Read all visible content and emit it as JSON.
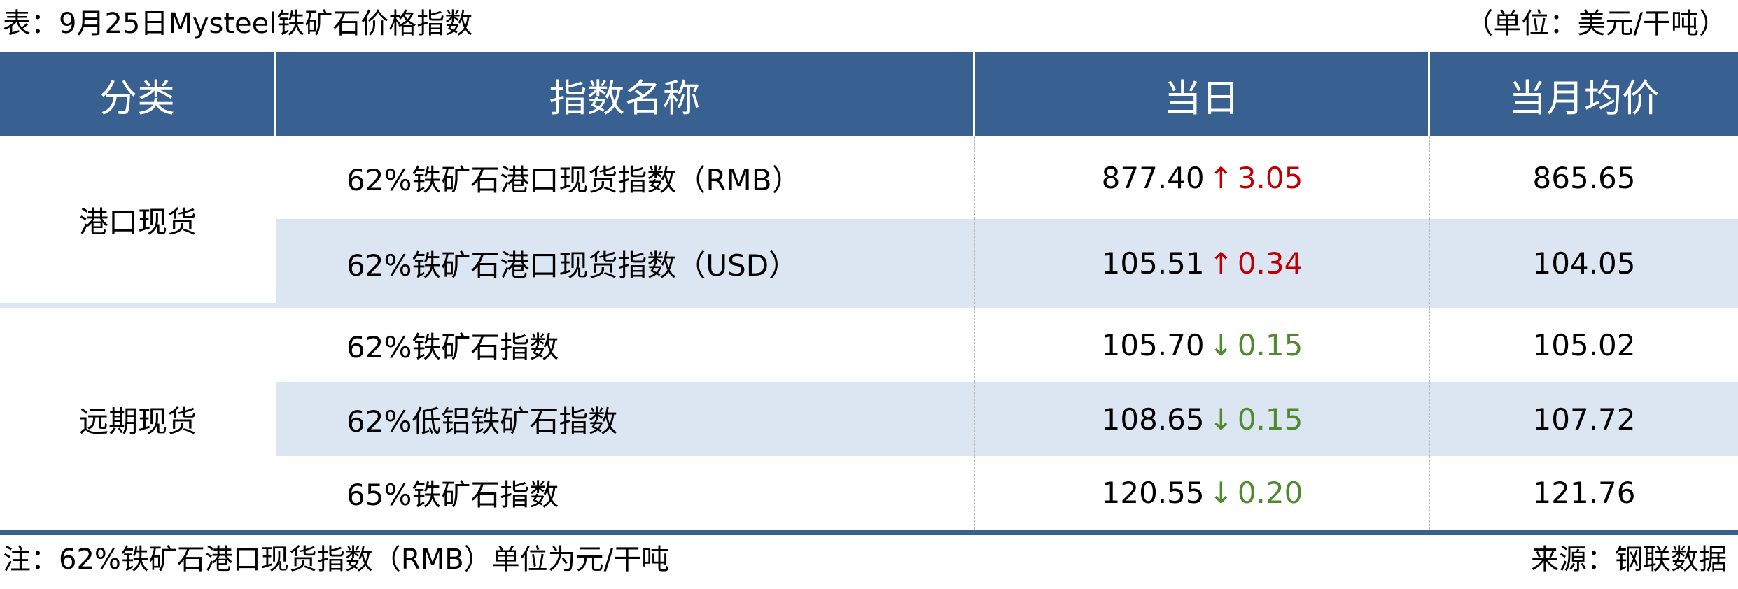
{
  "title": "表：9月25日Mysteel铁矿石价格指数",
  "unit": "（单位：美元/干吨）",
  "header": {
    "category": "分类",
    "name": "指数名称",
    "today": "当日",
    "month_avg": "当月均价"
  },
  "groups": [
    {
      "label": "港口现货"
    },
    {
      "label": "远期现货"
    }
  ],
  "rows": [
    {
      "name": "62%铁矿石港口现货指数（RMB）",
      "today": "877.40",
      "direction": "up",
      "arrow": "↑",
      "change": "3.05",
      "month_avg": "865.65"
    },
    {
      "name": "62%铁矿石港口现货指数（USD）",
      "today": "105.51",
      "direction": "up",
      "arrow": "↑",
      "change": "0.34",
      "month_avg": "104.05"
    },
    {
      "name": "62%铁矿石指数",
      "today": "105.70",
      "direction": "down",
      "arrow": "↓",
      "change": "0.15",
      "month_avg": "105.02"
    },
    {
      "name": "62%低铝铁矿石指数",
      "today": "108.65",
      "direction": "down",
      "arrow": "↓",
      "change": "0.15",
      "month_avg": "107.72"
    },
    {
      "name": "65%铁矿石指数",
      "today": "120.55",
      "direction": "down",
      "arrow": "↓",
      "change": "0.20",
      "month_avg": "121.76"
    }
  ],
  "note": "注：62%铁矿石港口现货指数（RMB）单位为元/干吨",
  "source": "来源：钢联数据",
  "colors": {
    "header": "#386091",
    "alt_row": "#dce6f2",
    "up": "#c00000",
    "down": "#4f8a2f"
  }
}
